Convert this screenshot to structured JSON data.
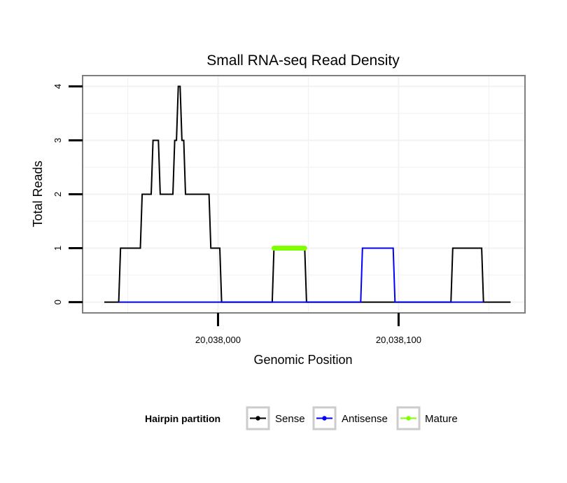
{
  "chart_data": {
    "type": "line",
    "title": "Small RNA-seq Read Density",
    "xlabel": "Genomic Position",
    "ylabel": "Total Reads",
    "xlim": [
      20037925,
      20038170
    ],
    "ylim": [
      -0.2,
      4.2
    ],
    "x_ticks": [
      20038000,
      20038100
    ],
    "x_tick_labels": [
      "20,038,000",
      "20,038,100"
    ],
    "y_ticks": [
      0,
      1,
      2,
      3,
      4
    ],
    "y_tick_labels": [
      "0",
      "1",
      "2",
      "3",
      "4"
    ],
    "grid": true,
    "legend": {
      "title": "Hairpin partition",
      "position": "bottom",
      "entries": [
        "Sense",
        "Antisense",
        "Mature"
      ]
    },
    "series": [
      {
        "name": "Sense",
        "color": "#000000",
        "points": [
          [
            20037937,
            0
          ],
          [
            20037945,
            0
          ],
          [
            20037946,
            1
          ],
          [
            20037957,
            1
          ],
          [
            20037958,
            2
          ],
          [
            20037963,
            2
          ],
          [
            20037964,
            3
          ],
          [
            20037967,
            3
          ],
          [
            20037968,
            2
          ],
          [
            20037975,
            2
          ],
          [
            20037976,
            3
          ],
          [
            20037977,
            3
          ],
          [
            20037978,
            4
          ],
          [
            20037979,
            4
          ],
          [
            20037980,
            3
          ],
          [
            20037981,
            3
          ],
          [
            20037982,
            2
          ],
          [
            20037995,
            2
          ],
          [
            20037996,
            1
          ],
          [
            20038001,
            1
          ],
          [
            20038002,
            0
          ],
          [
            20038030,
            0
          ],
          [
            20038031,
            1
          ],
          [
            20038048,
            1
          ],
          [
            20038049,
            0
          ],
          [
            20038129,
            0
          ],
          [
            20038130,
            1
          ],
          [
            20038146,
            1
          ],
          [
            20038147,
            0
          ],
          [
            20038162,
            0
          ]
        ]
      },
      {
        "name": "Antisense",
        "color": "#0000ff",
        "points": [
          [
            20037945,
            0
          ],
          [
            20038002,
            0
          ],
          [
            20038031,
            0
          ],
          [
            20038049,
            0
          ],
          [
            20038079,
            0
          ],
          [
            20038080,
            1
          ],
          [
            20038097,
            1
          ],
          [
            20038098,
            0
          ],
          [
            20038130,
            0
          ],
          [
            20038147,
            0
          ]
        ]
      },
      {
        "name": "Mature",
        "color": "#7fff00",
        "points": [
          [
            20038031,
            1
          ],
          [
            20038048,
            1
          ]
        ]
      }
    ]
  }
}
